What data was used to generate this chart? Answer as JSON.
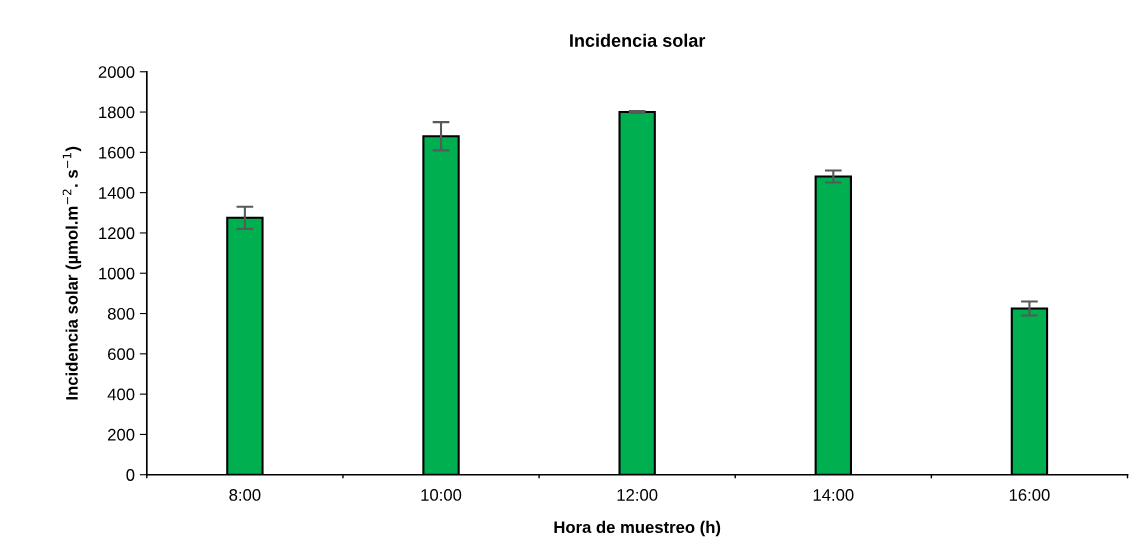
{
  "chart_data": {
    "type": "bar",
    "title": "Incidencia solar",
    "xlabel": "Hora de muestreo (h)",
    "ylabel": "Incidencia solar (µmol.m$^{−2}$. s$^{−1}$)",
    "categories": [
      "8:00",
      "10:00",
      "12:00",
      "14:00",
      "16:00"
    ],
    "values": [
      1275,
      1680,
      1800,
      1480,
      825
    ],
    "errors": [
      55,
      70,
      5,
      30,
      35
    ],
    "color": "#00b050",
    "ylim": [
      0,
      2000
    ],
    "yticks": [
      0,
      200,
      400,
      600,
      800,
      1000,
      1200,
      1400,
      1600,
      1800,
      2000
    ],
    "grid": false
  }
}
